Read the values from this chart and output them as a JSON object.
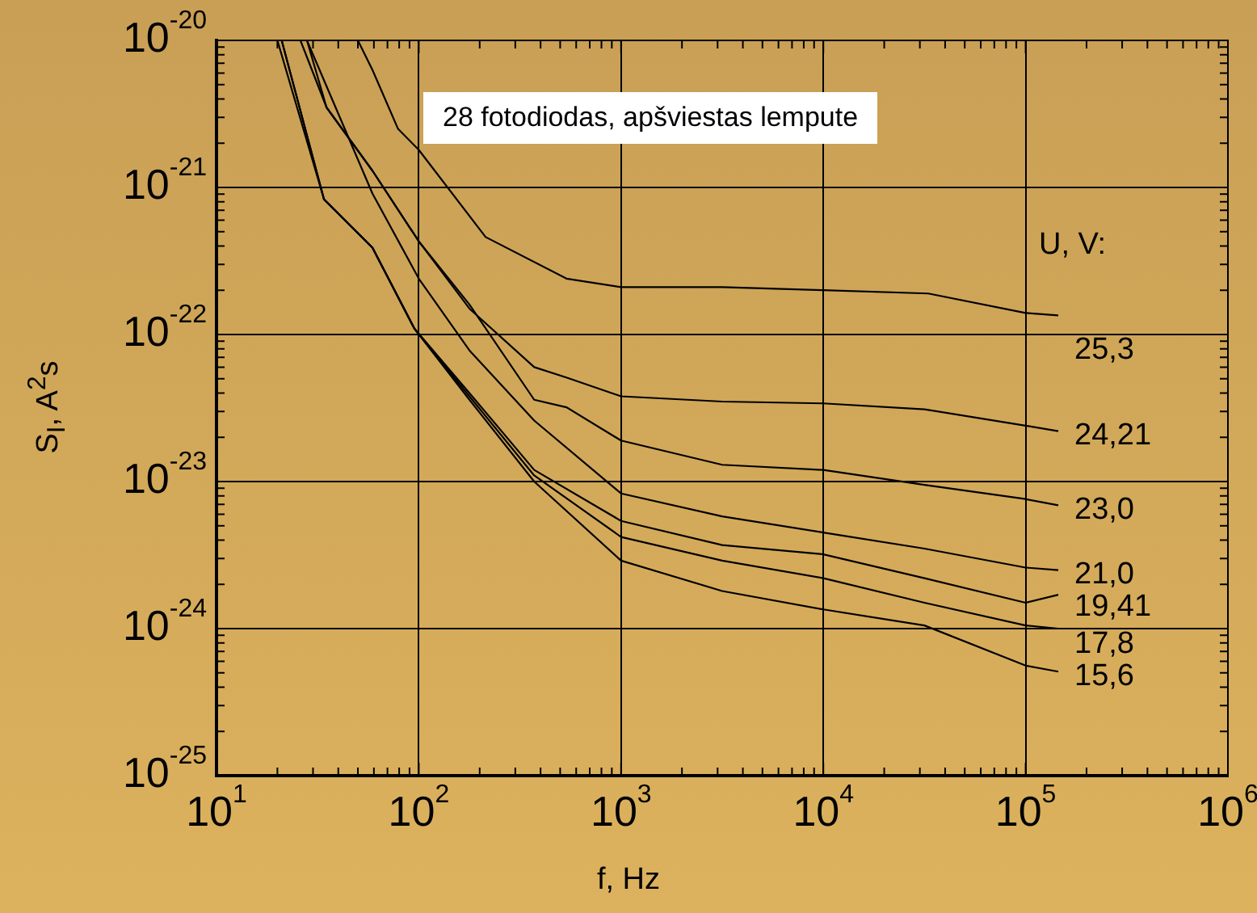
{
  "chart_data": {
    "type": "line",
    "xlabel": "f, Hz",
    "ylabel": "S$_{I}$, A$^{2}$s",
    "legend_title": "U, V:",
    "annotations": [
      "28 fotodiodas, apšviestas lempute"
    ],
    "log": "xy",
    "grid": true,
    "legend": "right",
    "xlim": [
      10,
      1000000
    ],
    "xticks": [
      {
        "value": 10,
        "label": "10$^{1}$"
      },
      {
        "value": 100,
        "label": "10$^{2}$"
      },
      {
        "value": 1000,
        "label": "10$^{3}$"
      },
      {
        "value": 10000,
        "label": "10$^{4}$"
      },
      {
        "value": 100000,
        "label": "10$^{5}$"
      },
      {
        "value": 1000000,
        "label": "10$^{6}$"
      }
    ],
    "ylim": [
      1e-25,
      1e-20
    ],
    "yticks": [
      {
        "value": 1e-25,
        "label": "10$^{-25}$"
      },
      {
        "value": 1e-24,
        "label": "10$^{-24}$"
      },
      {
        "value": 1e-23,
        "label": "10$^{-23}$"
      },
      {
        "value": 1e-22,
        "label": "10$^{-22}$"
      },
      {
        "value": 1e-21,
        "label": "10$^{-21}$"
      },
      {
        "value": 1e-20,
        "label": "10$^{-20}$"
      }
    ],
    "series": [
      {
        "name": "25,3",
        "color": "#000000",
        "x": [
          50,
          59,
          79,
          100,
          214,
          537,
          1000,
          3162,
          10000,
          33000,
          100000,
          145000
        ],
        "values": [
          1e-20,
          6.3e-21,
          2.5e-21,
          1.8e-21,
          4.6e-22,
          2.4e-22,
          2.1e-22,
          2.1e-22,
          2e-22,
          1.9e-22,
          1.4e-22,
          1.35e-22
        ]
      },
      {
        "name": "24,21",
        "color": "#000000",
        "x": [
          26,
          35,
          59,
          100,
          178,
          372,
          537,
          1000,
          3162,
          10000,
          31623,
          100000,
          145000
        ],
        "values": [
          1e-20,
          3.5e-21,
          1.3e-21,
          4.3e-22,
          1.5e-22,
          6e-23,
          5.1e-23,
          3.8e-23,
          3.5e-23,
          3.4e-23,
          3.1e-23,
          2.4e-23,
          2.2e-23
        ]
      },
      {
        "name": "23,0",
        "color": "#000000",
        "x": [
          28,
          35,
          59,
          100,
          178,
          372,
          537,
          1000,
          3162,
          10000,
          31623,
          100000,
          145000
        ],
        "values": [
          1e-20,
          3.5e-21,
          1.3e-21,
          4.3e-22,
          1.6e-22,
          3.6e-23,
          3.2e-23,
          1.9e-23,
          1.3e-23,
          1.2e-23,
          9.5e-24,
          7.6e-24,
          6.9e-24
        ]
      },
      {
        "name": "21,0",
        "color": "#000000",
        "x": [
          28,
          59,
          100,
          178,
          372,
          1000,
          3162,
          10000,
          31623,
          100000,
          145000
        ],
        "values": [
          1e-20,
          9.1e-22,
          2.4e-22,
          7.8e-23,
          2.6e-23,
          8.3e-24,
          5.8e-24,
          4.5e-24,
          3.5e-24,
          2.6e-24,
          2.5e-24
        ]
      },
      {
        "name": "19,41",
        "color": "#000000",
        "x": [
          21,
          34,
          59,
          95,
          178,
          372,
          1000,
          3162,
          10000,
          31623,
          100000,
          145000
        ],
        "values": [
          1e-20,
          8.3e-22,
          3.9e-22,
          1.1e-22,
          4e-23,
          1.2e-23,
          5.4e-24,
          3.7e-24,
          3.2e-24,
          2.2e-24,
          1.5e-24,
          1.7e-24
        ]
      },
      {
        "name": "17,8",
        "color": "#000000",
        "x": [
          21,
          34,
          59,
          95,
          178,
          372,
          1000,
          3162,
          10000,
          31623,
          100000,
          145000
        ],
        "values": [
          1e-20,
          8.3e-22,
          3.9e-22,
          1.1e-22,
          3.8e-23,
          1.1e-23,
          4.2e-24,
          2.9e-24,
          2.2e-24,
          1.5e-24,
          1.05e-24,
          1e-24
        ]
      },
      {
        "name": "15,6",
        "color": "#000000",
        "x": [
          20,
          34,
          59,
          95,
          178,
          372,
          1000,
          3162,
          10000,
          31623,
          100000,
          145000
        ],
        "values": [
          1e-20,
          8.3e-22,
          3.9e-22,
          1.1e-22,
          3.6e-23,
          1e-23,
          2.9e-24,
          1.8e-24,
          1.35e-24,
          1.05e-24,
          5.6e-25,
          5.1e-25
        ]
      }
    ]
  }
}
